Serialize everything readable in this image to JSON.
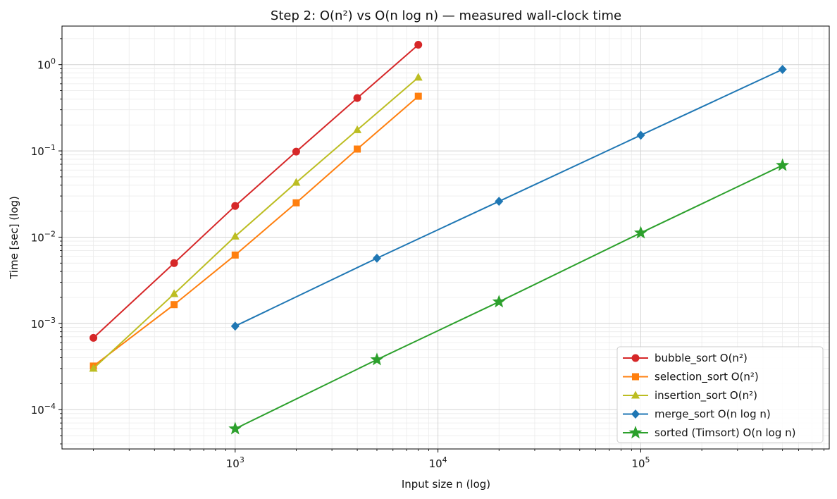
{
  "chart_data": {
    "type": "line",
    "title": "Step 2: O(n²) vs O(n log n) — measured wall-clock time",
    "xlabel": "Input size n  (log)",
    "ylabel": "Time [sec]  (log)",
    "xscale": "log",
    "yscale": "log",
    "xlim": [
      140,
      850000
    ],
    "ylim": [
      3.5e-05,
      2.8
    ],
    "x_ticks": [
      {
        "value": 1000,
        "base": "10",
        "exp": "3"
      },
      {
        "value": 10000,
        "base": "10",
        "exp": "4"
      },
      {
        "value": 100000,
        "base": "10",
        "exp": "5"
      }
    ],
    "y_ticks": [
      {
        "value": 1,
        "base": "10",
        "exp": "0"
      },
      {
        "value": 0.1,
        "base": "10",
        "exp": "−1"
      },
      {
        "value": 0.01,
        "base": "10",
        "exp": "−2"
      },
      {
        "value": 0.001,
        "base": "10",
        "exp": "−3"
      },
      {
        "value": 0.0001,
        "base": "10",
        "exp": "−4"
      }
    ],
    "grid": true,
    "legend_position": "bottom-right",
    "series": [
      {
        "name": "bubble_sort  O(n²)",
        "color": "#d62728",
        "marker": "circle",
        "x": [
          200,
          500,
          1000,
          2000,
          4000,
          8000
        ],
        "y": [
          0.00068,
          0.005,
          0.023,
          0.098,
          0.41,
          1.7
        ]
      },
      {
        "name": "selection_sort  O(n²)",
        "color": "#ff7f0e",
        "marker": "square",
        "x": [
          200,
          500,
          1000,
          2000,
          4000,
          8000
        ],
        "y": [
          0.00032,
          0.00165,
          0.0062,
          0.025,
          0.105,
          0.43
        ]
      },
      {
        "name": "insertion_sort  O(n²)",
        "color": "#bcbd22",
        "marker": "triangle",
        "x": [
          200,
          500,
          1000,
          2000,
          4000,
          8000
        ],
        "y": [
          0.0003,
          0.0022,
          0.0102,
          0.043,
          0.175,
          0.71
        ]
      },
      {
        "name": "merge_sort  O(n log n)",
        "color": "#1f77b4",
        "marker": "diamond",
        "x": [
          1000,
          5000,
          20000,
          100000,
          500000
        ],
        "y": [
          0.00093,
          0.0057,
          0.026,
          0.152,
          0.88
        ]
      },
      {
        "name": "sorted (Timsort)  O(n log n)",
        "color": "#2ca02c",
        "marker": "star",
        "x": [
          1000,
          5000,
          20000,
          100000,
          500000
        ],
        "y": [
          6e-05,
          0.00038,
          0.00178,
          0.0112,
          0.068
        ]
      }
    ]
  }
}
